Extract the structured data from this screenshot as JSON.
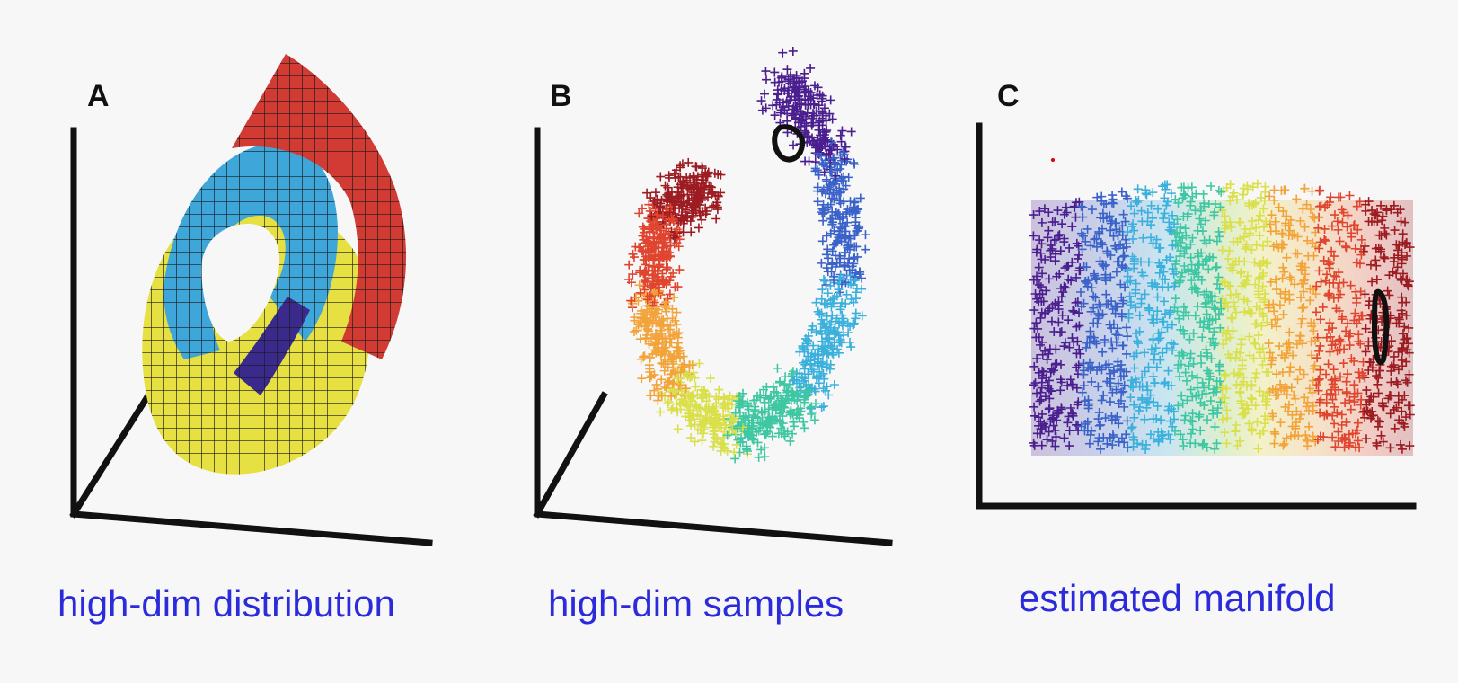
{
  "panels": [
    {
      "letter": "A",
      "caption": "high-dim distribution"
    },
    {
      "letter": "B",
      "caption": "high-dim samples"
    },
    {
      "letter": "C",
      "caption": "estimated manifold"
    }
  ],
  "palette": {
    "background": "#f7f7f7",
    "caption_color": "#2b2bdc",
    "axis_color": "#111111",
    "surface_red": "#d23b34",
    "surface_blue": "#3ea6d8",
    "surface_yellow": "#e6e042",
    "surface_purple": "#3a2a8c",
    "sample_colormap": [
      "#4b1f8f",
      "#3a62c8",
      "#3bb0dd",
      "#3fc7a3",
      "#d9e04a",
      "#f2a43a",
      "#e0452f",
      "#9c1c22"
    ]
  },
  "marks": {
    "glyph": "+",
    "sample_loop": "black loop marker"
  }
}
